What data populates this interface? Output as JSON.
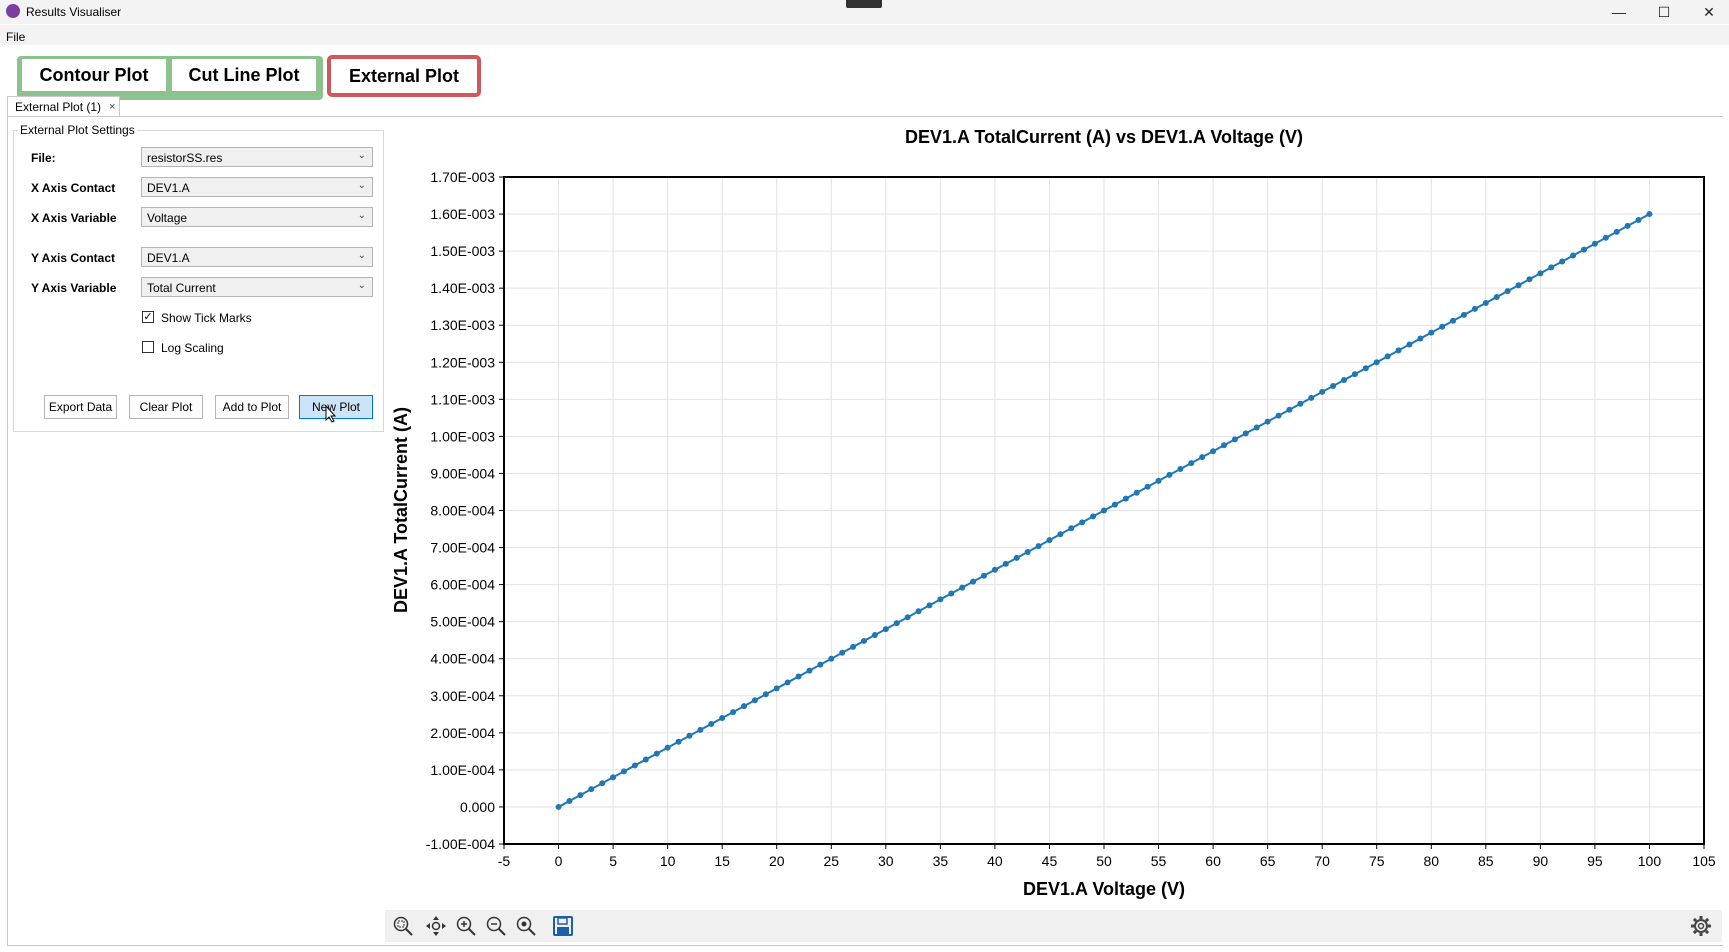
{
  "window": {
    "title": "Results Visualiser"
  },
  "menu": {
    "file": "File"
  },
  "modes": {
    "contour": "Contour Plot",
    "cutline": "Cut Line Plot",
    "external": "External Plot"
  },
  "tab": {
    "label": "External Plot (1)",
    "close": "×"
  },
  "settings": {
    "group_title": "External Plot Settings",
    "file_label": "File:",
    "file_value": "resistorSS.res",
    "x_contact_label": "X Axis Contact",
    "x_contact_value": "DEV1.A",
    "x_variable_label": "X Axis Variable",
    "x_variable_value": "Voltage",
    "y_contact_label": "Y Axis Contact",
    "y_contact_value": "DEV1.A",
    "y_variable_label": "Y Axis Variable",
    "y_variable_value": "Total Current",
    "show_tick_marks_label": "Show Tick Marks",
    "show_tick_marks_checked": true,
    "log_scaling_label": "Log Scaling",
    "log_scaling_checked": false
  },
  "buttons": {
    "export": "Export Data",
    "clear": "Clear Plot",
    "add": "Add to Plot",
    "new": "New Plot"
  },
  "icons": {
    "zoom_fit": "zoom-fit-icon",
    "pan": "pan-icon",
    "zoom_in": "zoom-in-icon",
    "zoom_out": "zoom-out-icon",
    "zoom_reset": "zoom-reset-icon",
    "save": "save-icon",
    "settings": "gear-icon"
  },
  "colors": {
    "series": "#1f77b4",
    "contour_border": "#8cc28e",
    "external_border": "#d0575c"
  },
  "chart_data": {
    "type": "line",
    "title": "DEV1.A TotalCurrent (A) vs DEV1.A Voltage (V)",
    "xlabel": "DEV1.A Voltage (V)",
    "ylabel": "DEV1.A TotalCurrent (A)",
    "xlim": [
      -5,
      105
    ],
    "ylim": [
      -0.0001,
      0.0017
    ],
    "x_ticks": [
      "-5",
      "0",
      "5",
      "10",
      "15",
      "20",
      "25",
      "30",
      "35",
      "40",
      "45",
      "50",
      "55",
      "60",
      "65",
      "70",
      "75",
      "80",
      "85",
      "90",
      "95",
      "100",
      "105"
    ],
    "y_ticks": [
      "-1.00E-004",
      "0.000",
      "1.00E-004",
      "2.00E-004",
      "3.00E-004",
      "4.00E-004",
      "5.00E-004",
      "6.00E-004",
      "7.00E-004",
      "8.00E-004",
      "9.00E-004",
      "1.00E-003",
      "1.10E-003",
      "1.20E-003",
      "1.30E-003",
      "1.40E-003",
      "1.50E-003",
      "1.60E-003",
      "1.70E-003"
    ],
    "grid": true,
    "series": [
      {
        "x": [
          0,
          1,
          2,
          3,
          4,
          5,
          6,
          7,
          8,
          9,
          10,
          11,
          12,
          13,
          14,
          15,
          16,
          17,
          18,
          19,
          20,
          21,
          22,
          23,
          24,
          25,
          26,
          27,
          28,
          29,
          30,
          31,
          32,
          33,
          34,
          35,
          36,
          37,
          38,
          39,
          40,
          41,
          42,
          43,
          44,
          45,
          46,
          47,
          48,
          49,
          50,
          51,
          52,
          53,
          54,
          55,
          56,
          57,
          58,
          59,
          60,
          61,
          62,
          63,
          64,
          65,
          66,
          67,
          68,
          69,
          70,
          71,
          72,
          73,
          74,
          75,
          76,
          77,
          78,
          79,
          80,
          81,
          82,
          83,
          84,
          85,
          86,
          87,
          88,
          89,
          90,
          91,
          92,
          93,
          94,
          95,
          96,
          97,
          98,
          99,
          100
        ],
        "y": [
          0,
          1.6e-05,
          3.2e-05,
          4.8e-05,
          6.4e-05,
          8e-05,
          9.6e-05,
          0.000112,
          0.000128,
          0.000144,
          0.00016,
          0.000176,
          0.000192,
          0.000208,
          0.000224,
          0.00024,
          0.000256,
          0.000272,
          0.000288,
          0.000304,
          0.00032,
          0.000336,
          0.000352,
          0.000368,
          0.000384,
          0.0004,
          0.000416,
          0.000432,
          0.000448,
          0.000464,
          0.00048,
          0.000496,
          0.000512,
          0.000528,
          0.000544,
          0.00056,
          0.000576,
          0.000592,
          0.000608,
          0.000624,
          0.00064,
          0.000656,
          0.000672,
          0.000688,
          0.000704,
          0.00072,
          0.000736,
          0.000752,
          0.000768,
          0.000784,
          0.0008,
          0.000816,
          0.000832,
          0.000848,
          0.000864,
          0.00088,
          0.000896,
          0.000912,
          0.000928,
          0.000944,
          0.00096,
          0.000976,
          0.000992,
          0.001008,
          0.001024,
          0.00104,
          0.001056,
          0.001072,
          0.001088,
          0.001104,
          0.00112,
          0.001136,
          0.001152,
          0.001168,
          0.001184,
          0.0012,
          0.001216,
          0.001232,
          0.001248,
          0.001264,
          0.00128,
          0.001296,
          0.001312,
          0.001328,
          0.001344,
          0.00136,
          0.001376,
          0.001392,
          0.001408,
          0.001424,
          0.00144,
          0.001456,
          0.001472,
          0.001488,
          0.001504,
          0.00152,
          0.001536,
          0.001552,
          0.001568,
          0.001584,
          0.0016
        ]
      }
    ]
  }
}
